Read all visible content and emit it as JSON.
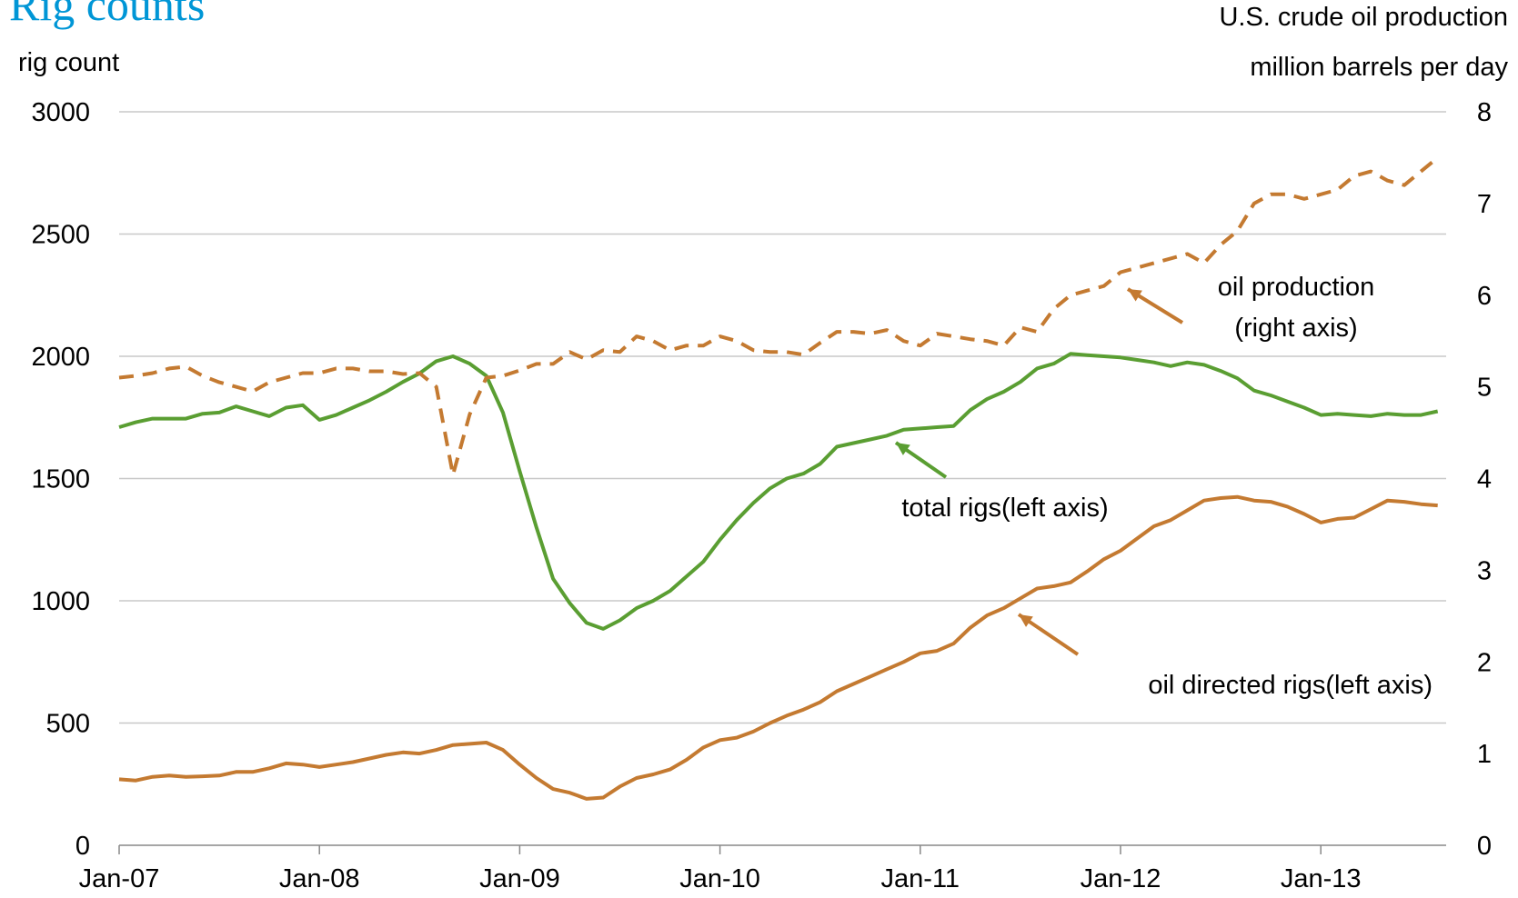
{
  "chart_data": {
    "type": "line",
    "title": "Rig counts",
    "ylabel": "rig count",
    "y2label": [
      "U.S. crude oil production",
      "million barrels per day"
    ],
    "categories": [
      "Jan-07",
      null,
      null,
      null,
      null,
      null,
      null,
      null,
      null,
      null,
      null,
      null,
      "Jan-08",
      null,
      null,
      null,
      null,
      null,
      null,
      null,
      null,
      null,
      null,
      null,
      "Jan-09",
      null,
      null,
      null,
      null,
      null,
      null,
      null,
      null,
      null,
      null,
      null,
      "Jan-10",
      null,
      null,
      null,
      null,
      null,
      null,
      null,
      null,
      null,
      null,
      null,
      "Jan-11",
      null,
      null,
      null,
      null,
      null,
      null,
      null,
      null,
      null,
      null,
      null,
      "Jan-12",
      null,
      null,
      null,
      null,
      null,
      null,
      null,
      null,
      null,
      null,
      null,
      "Jan-13",
      null,
      null,
      null,
      null,
      null,
      null,
      null
    ],
    "ylim": [
      0,
      3000
    ],
    "yticks": [
      0,
      500,
      1000,
      1500,
      2000,
      2500,
      3000
    ],
    "y2lim": [
      0,
      8
    ],
    "y2ticks": [
      0,
      1,
      2,
      3,
      4,
      5,
      6,
      7,
      8
    ],
    "grid": true,
    "series": [
      {
        "name": "total rigs",
        "color": "#5a9e32",
        "dash": false,
        "values": [
          1710,
          1730,
          1745,
          1745,
          1745,
          1765,
          1770,
          1795,
          1775,
          1755,
          1790,
          1800,
          1740,
          1760,
          1790,
          1820,
          1855,
          1895,
          1930,
          1980,
          2000,
          1970,
          1920,
          1770,
          1530,
          1300,
          1090,
          990,
          910,
          885,
          920,
          970,
          1000,
          1040,
          1100,
          1160,
          1250,
          1330,
          1400,
          1460,
          1500,
          1520,
          1560,
          1630,
          1645,
          1660,
          1675,
          1700,
          1705,
          1710,
          1715,
          1780,
          1825,
          1855,
          1895,
          1950,
          1970,
          2010,
          2005,
          2000,
          1995,
          1985,
          1975,
          1960,
          1975,
          1965,
          1940,
          1910,
          1860,
          1840,
          1815,
          1790,
          1760,
          1765,
          1760,
          1755,
          1765,
          1760,
          1760,
          1775
        ]
      },
      {
        "name": "oil directed rigs",
        "color": "#c47a31",
        "dash": false,
        "values": [
          270,
          265,
          280,
          285,
          280,
          282,
          285,
          300,
          300,
          315,
          335,
          330,
          320,
          330,
          340,
          355,
          370,
          380,
          375,
          390,
          410,
          415,
          420,
          390,
          330,
          275,
          230,
          215,
          190,
          195,
          240,
          275,
          290,
          310,
          350,
          400,
          430,
          440,
          465,
          500,
          530,
          555,
          585,
          630,
          660,
          690,
          720,
          750,
          785,
          795,
          825,
          890,
          940,
          970,
          1010,
          1050,
          1060,
          1075,
          1120,
          1170,
          1205,
          1255,
          1305,
          1330,
          1370,
          1410,
          1420,
          1425,
          1410,
          1405,
          1385,
          1355,
          1320,
          1335,
          1340,
          1375,
          1410,
          1405,
          1395,
          1390
        ]
      },
      {
        "name": "oil production",
        "color": "#c47a31",
        "dash": true,
        "axis": "y2",
        "values": [
          5.1,
          5.12,
          5.15,
          5.2,
          5.22,
          5.12,
          5.05,
          5.0,
          4.95,
          5.05,
          5.1,
          5.15,
          5.15,
          5.2,
          5.2,
          5.17,
          5.17,
          5.14,
          5.15,
          5.0,
          4.04,
          4.7,
          5.1,
          5.12,
          5.18,
          5.25,
          5.25,
          5.38,
          5.3,
          5.4,
          5.38,
          5.55,
          5.5,
          5.4,
          5.45,
          5.45,
          5.55,
          5.5,
          5.4,
          5.38,
          5.38,
          5.35,
          5.48,
          5.6,
          5.6,
          5.58,
          5.62,
          5.5,
          5.45,
          5.58,
          5.55,
          5.52,
          5.5,
          5.45,
          5.65,
          5.6,
          5.85,
          6.0,
          6.05,
          6.1,
          6.25,
          6.3,
          6.35,
          6.4,
          6.45,
          6.35,
          6.55,
          6.7,
          7.0,
          7.1,
          7.1,
          7.05,
          7.1,
          7.15,
          7.3,
          7.35,
          7.25,
          7.2,
          7.35,
          7.5
        ]
      }
    ],
    "annotations": [
      {
        "text": [
          "oil production",
          "(right axis)"
        ]
      },
      {
        "text": [
          "total rigs(left axis)"
        ]
      },
      {
        "text": [
          "oil directed rigs(left axis)"
        ]
      }
    ]
  }
}
